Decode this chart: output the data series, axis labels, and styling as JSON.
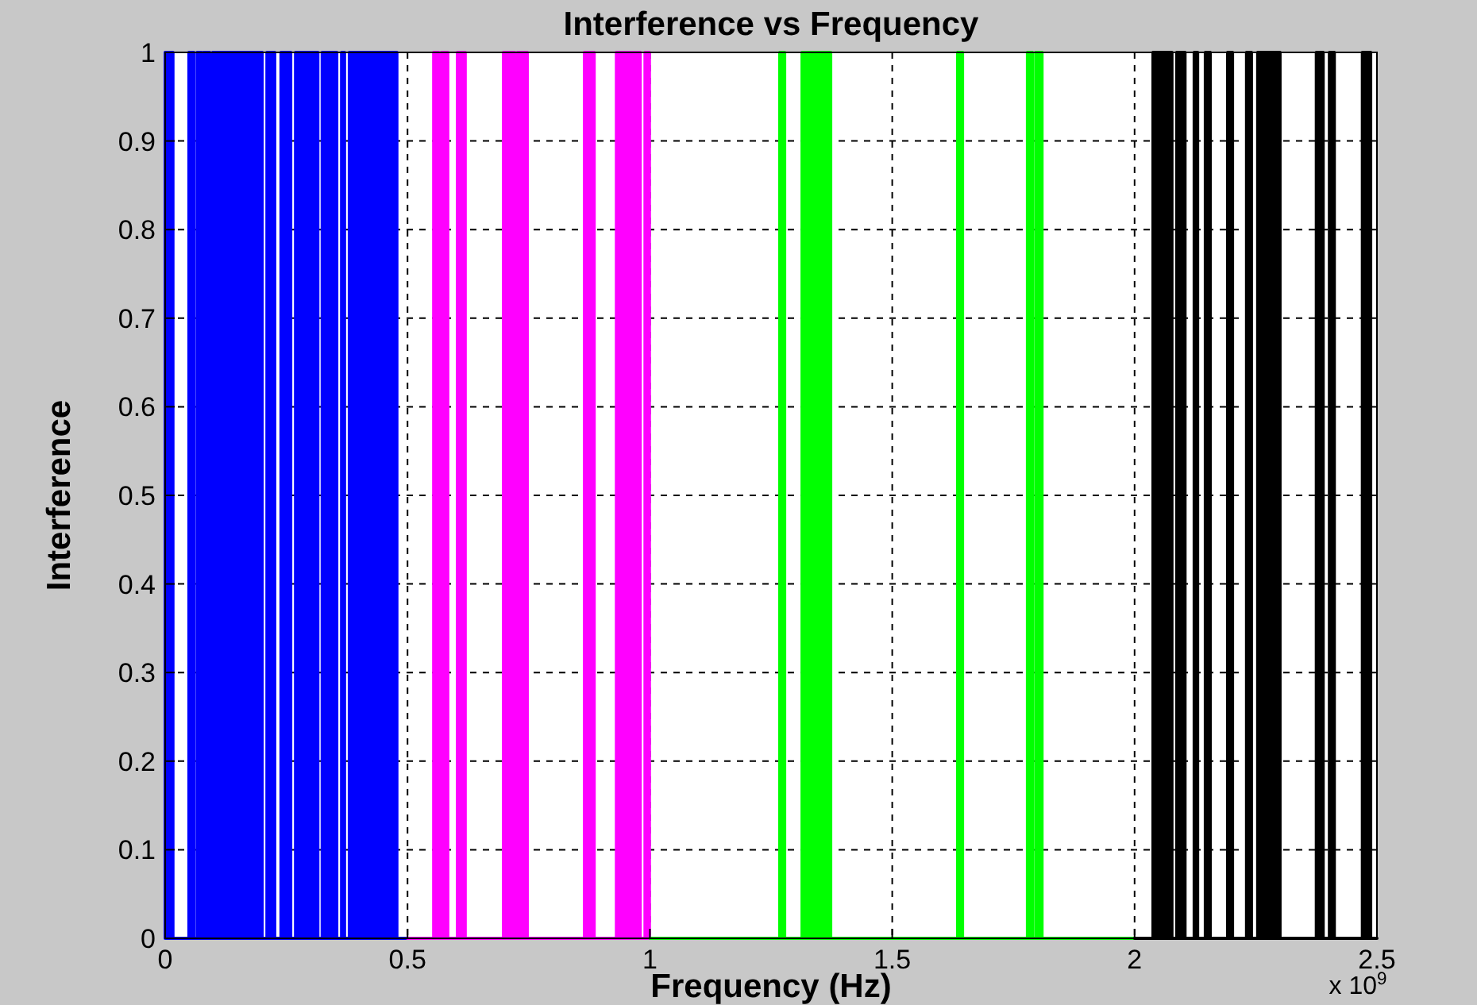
{
  "chart_data": {
    "type": "area",
    "title": "Interference vs Frequency",
    "xlabel": "Frequency (Hz)",
    "ylabel": "Interference",
    "annotations": [
      "x 10$^{9}$"
    ],
    "xlim": [
      0,
      2.5
    ],
    "xticks": [
      0,
      0.5,
      1,
      1.5,
      2,
      2.5
    ],
    "ylim": [
      0,
      1
    ],
    "yticks": [
      0,
      0.1,
      0.2,
      0.3,
      0.4,
      0.5,
      0.6,
      0.7,
      0.8,
      0.9,
      1
    ],
    "grid": true,
    "series": [
      {
        "color": "#0000ff",
        "x": [
          0,
          0,
          0.016,
          0.016,
          0.049,
          0.049,
          0.059,
          0.059,
          0.066,
          0.066,
          0.075,
          0.075,
          0.079,
          0.079,
          0.092,
          0.092,
          0.098,
          0.098,
          0.2,
          0.2,
          0.21,
          0.21,
          0.226,
          0.226,
          0.239,
          0.239,
          0.259,
          0.259,
          0.269,
          0.269,
          0.315,
          0.315,
          0.324,
          0.324,
          0.354,
          0.354,
          0.364,
          0.364,
          0.37,
          0.37,
          0.38,
          0.38,
          0.478,
          0.478,
          0.5
        ],
        "values": [
          0,
          1,
          1,
          0,
          0,
          1,
          1,
          0,
          0,
          1,
          1,
          0,
          0,
          1,
          1,
          0,
          0,
          1,
          1,
          0,
          0,
          1,
          1,
          0,
          0,
          1,
          1,
          0,
          0,
          1,
          1,
          0,
          0,
          1,
          1,
          0,
          0,
          1,
          1,
          0,
          0,
          1,
          1,
          0,
          0
        ]
      },
      {
        "color": "#ff00ff",
        "x": [
          0.5,
          0.554,
          0.554,
          0.564,
          0.564,
          0.57,
          0.57,
          0.583,
          0.583,
          0.603,
          0.603,
          0.619,
          0.619,
          0.698,
          0.698,
          0.721,
          0.721,
          0.727,
          0.727,
          0.747,
          0.747,
          0.865,
          0.865,
          0.885,
          0.885,
          0.931,
          0.931,
          0.98,
          0.98,
          0.99,
          0.99,
          0.999,
          0.999,
          1
        ],
        "values": [
          0,
          0,
          1,
          1,
          0,
          0,
          1,
          1,
          0,
          0,
          1,
          1,
          0,
          0,
          1,
          1,
          0,
          0,
          1,
          1,
          0,
          0,
          1,
          1,
          0,
          0,
          1,
          1,
          0,
          0,
          1,
          1,
          0,
          0
        ]
      },
      {
        "color": "#00ff00",
        "x": [
          1,
          1.268,
          1.268,
          1.278,
          1.278,
          1.314,
          1.314,
          1.327,
          1.327,
          1.33,
          1.33,
          1.357,
          1.357,
          1.36,
          1.36,
          1.373,
          1.373,
          1.635,
          1.635,
          1.645,
          1.645,
          1.779,
          1.779,
          1.789,
          1.789,
          1.796,
          1.796,
          1.809,
          1.809,
          2
        ],
        "values": [
          0,
          0,
          1,
          1,
          0,
          0,
          1,
          1,
          0,
          0,
          1,
          1,
          0,
          0,
          1,
          1,
          0,
          0,
          1,
          1,
          0,
          0,
          1,
          1,
          0,
          0,
          1,
          1,
          0,
          0
        ]
      },
      {
        "color": "#000000",
        "x": [
          2,
          2.038,
          2.038,
          2.077,
          2.077,
          2.087,
          2.087,
          2.104,
          2.104,
          2.123,
          2.123,
          2.13,
          2.13,
          2.146,
          2.146,
          2.156,
          2.156,
          2.192,
          2.192,
          2.202,
          2.202,
          2.231,
          2.231,
          2.241,
          2.241,
          2.254,
          2.254,
          2.287,
          2.287,
          2.29,
          2.29,
          2.3,
          2.3,
          2.375,
          2.375,
          2.389,
          2.389,
          2.402,
          2.402,
          2.412,
          2.412,
          2.47,
          2.47,
          2.487,
          2.487,
          2.5
        ],
        "values": [
          0,
          0,
          1,
          1,
          0,
          0,
          1,
          1,
          0,
          0,
          1,
          1,
          0,
          0,
          1,
          1,
          0,
          0,
          1,
          1,
          0,
          0,
          1,
          1,
          0,
          0,
          1,
          1,
          0,
          0,
          1,
          1,
          0,
          0,
          1,
          1,
          0,
          0,
          1,
          1,
          0,
          0,
          1,
          1,
          0,
          0
        ]
      }
    ]
  }
}
